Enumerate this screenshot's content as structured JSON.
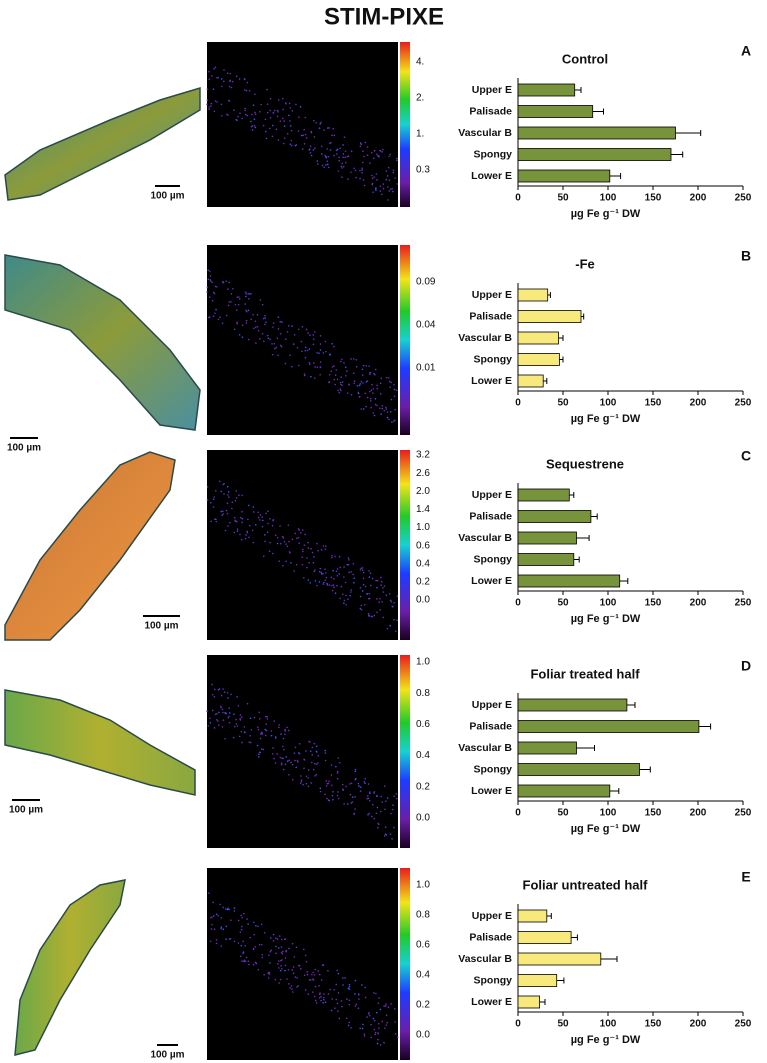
{
  "title": "STIM-PIXE",
  "panels": [
    {
      "scale_bar": "100 µm",
      "colorbar_labels": [
        "4.",
        "2.",
        "1.",
        "0.3"
      ]
    },
    {
      "scale_bar": "100 µm",
      "colorbar_labels": [
        "0.09",
        "0.04",
        "0.01"
      ]
    },
    {
      "scale_bar": "100 µm",
      "colorbar_labels": [
        "3.2",
        "2.6",
        "2.0",
        "1.4",
        "1.0",
        "0.6",
        "0.4",
        "0.2",
        "0.0"
      ]
    },
    {
      "scale_bar": "100 µm",
      "colorbar_labels": [
        "1.0",
        "0.8",
        "0.6",
        "0.4",
        "0.2",
        "0.0"
      ]
    },
    {
      "scale_bar": "100 µm",
      "colorbar_labels": [
        "1.0",
        "0.8",
        "0.6",
        "0.4",
        "0.2",
        "0.0"
      ]
    }
  ],
  "chart_data": [
    {
      "type": "bar",
      "orientation": "horizontal",
      "panel_label": "A",
      "title": "Control",
      "categories": [
        "Upper E",
        "Palisade",
        "Vascular B",
        "Spongy",
        "Lower E"
      ],
      "values": [
        63,
        83,
        175,
        170,
        102
      ],
      "errors": [
        7,
        12,
        28,
        13,
        12
      ],
      "color": "#77933c",
      "xlim": [
        0,
        250
      ],
      "xticks": [
        0,
        50,
        100,
        150,
        200,
        250
      ],
      "xlabel": "µg Fe g⁻¹ DW"
    },
    {
      "type": "bar",
      "orientation": "horizontal",
      "panel_label": "B",
      "title": "-Fe",
      "categories": [
        "Upper E",
        "Palisade",
        "Vascular B",
        "Spongy",
        "Lower E"
      ],
      "values": [
        33,
        70,
        45,
        46,
        28
      ],
      "errors": [
        3,
        3,
        5,
        4,
        4
      ],
      "color": "#f7e97c",
      "xlim": [
        0,
        250
      ],
      "xticks": [
        0,
        50,
        100,
        150,
        200,
        250
      ],
      "xlabel": "µg Fe g⁻¹ DW"
    },
    {
      "type": "bar",
      "orientation": "horizontal",
      "panel_label": "C",
      "title": "Sequestrene",
      "categories": [
        "Upper E",
        "Palisade",
        "Vascular B",
        "Spongy",
        "Lower E"
      ],
      "values": [
        57,
        81,
        65,
        62,
        113
      ],
      "errors": [
        5,
        7,
        14,
        6,
        9
      ],
      "color": "#77933c",
      "xlim": [
        0,
        250
      ],
      "xticks": [
        0,
        50,
        100,
        150,
        200,
        250
      ],
      "xlabel": "µg Fe g⁻¹ DW"
    },
    {
      "type": "bar",
      "orientation": "horizontal",
      "panel_label": "D",
      "title": "Foliar treated half",
      "categories": [
        "Upper E",
        "Palisade",
        "Vascular B",
        "Spongy",
        "Lower E"
      ],
      "values": [
        121,
        201,
        65,
        135,
        102
      ],
      "errors": [
        9,
        13,
        20,
        12,
        10
      ],
      "color": "#77933c",
      "xlim": [
        0,
        250
      ],
      "xticks": [
        0,
        50,
        100,
        150,
        200,
        250
      ],
      "xlabel": "µg Fe g⁻¹ DW"
    },
    {
      "type": "bar",
      "orientation": "horizontal",
      "panel_label": "E",
      "title": "Foliar untreated half",
      "categories": [
        "Upper E",
        "Palisade",
        "Vascular B",
        "Spongy",
        "Lower E"
      ],
      "values": [
        32,
        59,
        92,
        43,
        24
      ],
      "errors": [
        5,
        7,
        18,
        8,
        6
      ],
      "color": "#f7e97c",
      "xlim": [
        0,
        250
      ],
      "xticks": [
        0,
        50,
        100,
        150,
        200,
        250
      ],
      "xlabel": "µg Fe g⁻¹ DW"
    }
  ]
}
